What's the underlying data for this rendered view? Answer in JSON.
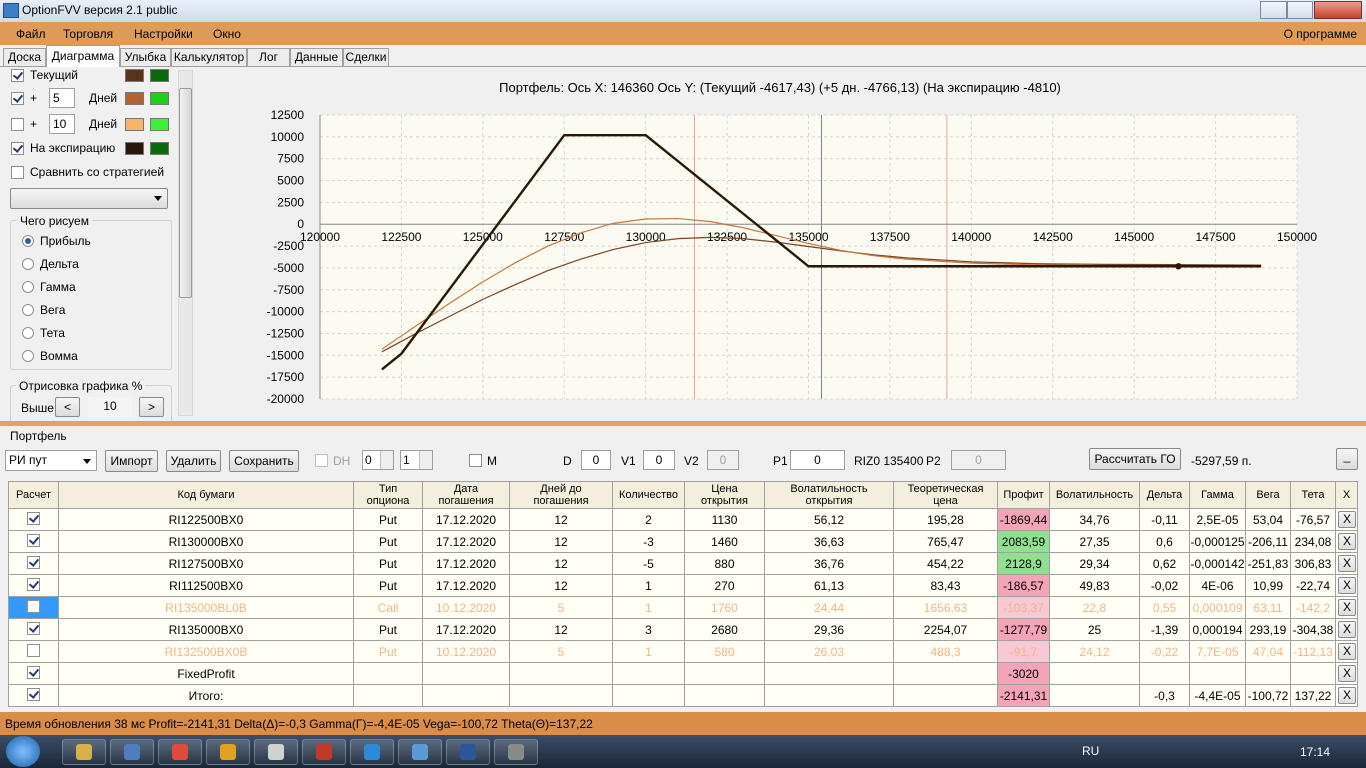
{
  "window": {
    "title": "OptionFVV версия 2.1 public"
  },
  "menu": {
    "items": [
      "Файл",
      "Торговля",
      "Настройки",
      "Окно"
    ],
    "about": "О программе"
  },
  "tabs": {
    "items": [
      "Доска",
      "Диаграмма",
      "Улыбка",
      "Калькулятор",
      "Лог",
      "Данные",
      "Сделки"
    ],
    "active": 1
  },
  "left_panel": {
    "curves": [
      {
        "label": "Текущий",
        "checked": true,
        "colors": [
          "#5c3317",
          "#0b6b0b"
        ]
      },
      {
        "prefix": "+",
        "days": "5",
        "label": "Дней",
        "checked": true,
        "colors": [
          "#b4632e",
          "#1ccf1c"
        ]
      },
      {
        "prefix": "+",
        "days": "10",
        "label": "Дней",
        "checked": false,
        "colors": [
          "#f8b26a",
          "#3af03a"
        ]
      },
      {
        "label": "На экспирацию",
        "checked": true,
        "colors": [
          "#2b1707",
          "#0b6b0b"
        ]
      }
    ],
    "compare": {
      "label": "Сравнить со стратегией",
      "checked": false
    },
    "draw_group": {
      "title": "Чего рисуем",
      "options": [
        "Прибыль",
        "Дельта",
        "Гамма",
        "Вега",
        "Тета",
        "Вомма"
      ],
      "selected": 0
    },
    "render_group": {
      "title": "Отрисовка графика %",
      "label": "Выше",
      "prev": "<",
      "value": "10",
      "next": ">"
    }
  },
  "chart_data": {
    "type": "line",
    "title": "Портфель: Ось X: 146360 Ось Y:  (Текущий -4617,43)  (+5 дн. -4766,13)  (На экспирацию -4810)",
    "xlim": [
      120000,
      150000
    ],
    "xticks": [
      120000,
      122500,
      125000,
      127500,
      130000,
      132500,
      135000,
      137500,
      140000,
      142500,
      145000,
      147500,
      150000
    ],
    "ylim": [
      -20000,
      12500
    ],
    "yticks": [
      12500,
      10000,
      7500,
      5000,
      2500,
      0,
      -2500,
      -5000,
      -7500,
      -10000,
      -12500,
      -15000,
      -17500,
      -20000
    ],
    "grid": true,
    "vlines": [
      {
        "value": 131500,
        "color": "#f0a0a0"
      },
      {
        "value": 135400,
        "color": "#7a8290"
      },
      {
        "value": 139250,
        "color": "#f0a0a0"
      }
    ],
    "series": [
      {
        "color": "#7a4520",
        "width": 1.2,
        "x": [
          121900,
          123000,
          124000,
          125000,
          126000,
          127000,
          128000,
          129000,
          130000,
          131000,
          132000,
          133000,
          134000,
          135000,
          136000,
          137000,
          138000,
          140000,
          142000,
          144000,
          146000,
          148900
        ],
        "values": [
          -14600,
          -12400,
          -10500,
          -8600,
          -6900,
          -5300,
          -4000,
          -2900,
          -2100,
          -1650,
          -1500,
          -1650,
          -2050,
          -2550,
          -3050,
          -3500,
          -3850,
          -4300,
          -4520,
          -4590,
          -4615,
          -4680
        ]
      },
      {
        "color": "#c8773a",
        "width": 1.2,
        "x": [
          121900,
          123000,
          124000,
          125000,
          126000,
          127000,
          128000,
          129000,
          130000,
          131000,
          132000,
          133000,
          134000,
          135000,
          136000,
          137000,
          138000,
          140000,
          142000,
          144000,
          146000,
          148900
        ],
        "values": [
          -14300,
          -11500,
          -9000,
          -6600,
          -4400,
          -2500,
          -1000,
          100,
          600,
          650,
          300,
          -400,
          -1300,
          -2200,
          -3000,
          -3600,
          -4000,
          -4450,
          -4650,
          -4730,
          -4760,
          -4800
        ]
      },
      {
        "color": "#2b1707",
        "width": 2.4,
        "x": [
          121900,
          122500,
          125000,
          127500,
          130000,
          135000,
          148900
        ],
        "values": [
          -16610,
          -14810,
          -2310,
          10190,
          10190,
          -4810,
          -4810
        ]
      }
    ],
    "cursor": {
      "x": 146360,
      "y": -4810,
      "color": "#2b1707"
    }
  },
  "portfolio": {
    "title": "Портфель",
    "toolbar": {
      "portfolio_select": "РИ пут",
      "buttons": [
        "Импорт",
        "Удалить",
        "Сохранить"
      ],
      "dh": {
        "label": "DH",
        "checked": false
      },
      "spins": [
        "0",
        "1"
      ],
      "m": {
        "label": "M",
        "checked": false
      },
      "fields": [
        {
          "label": "D",
          "value": "0"
        },
        {
          "label": "V1",
          "value": "0"
        },
        {
          "label": "V2",
          "value": "0"
        },
        {
          "label": "P1",
          "value": "0"
        }
      ],
      "underlying": "RIZ0 135400",
      "p2": {
        "label": "P2",
        "value": "0"
      },
      "go_button": "Рассчитать ГО",
      "go_value": "-5297,59 п.",
      "minimize": "_"
    },
    "table": {
      "header": [
        "Расчет",
        "Код бумаги",
        "Тип\nопциона",
        "Дата\nпогашения",
        "Дней до\nпогашения",
        "Количество",
        "Цена\nоткрытия",
        "Волатильность\nоткрытия",
        "Теоретическая\nцена",
        "Профит",
        "Волатильность",
        "Дельта",
        "Гамма",
        "Вега",
        "Тета",
        "X"
      ],
      "delete_label": "X",
      "rows": [
        {
          "checked": true,
          "active": true,
          "cells": [
            "RI122500BX0",
            "Put",
            "17.12.2020",
            "12",
            "2",
            "1130",
            "56,12",
            "195,28",
            "-1869,44",
            "34,76",
            "-0,11",
            "2,5E-05",
            "53,04",
            "-76,57"
          ]
        },
        {
          "checked": true,
          "active": true,
          "cells": [
            "RI130000BX0",
            "Put",
            "17.12.2020",
            "12",
            "-3",
            "1460",
            "36,63",
            "765,47",
            "2083,59",
            "27,35",
            "0,6",
            "-0,000125",
            "-206,11",
            "234,08"
          ]
        },
        {
          "checked": true,
          "active": true,
          "cells": [
            "RI127500BX0",
            "Put",
            "17.12.2020",
            "12",
            "-5",
            "880",
            "36,76",
            "454,22",
            "2128,9",
            "29,34",
            "0,62",
            "-0,000142",
            "-251,83",
            "306,83"
          ]
        },
        {
          "checked": true,
          "active": true,
          "cells": [
            "RI112500BX0",
            "Put",
            "17.12.2020",
            "12",
            "1",
            "270",
            "61,13",
            "83,43",
            "-186,57",
            "49,83",
            "-0,02",
            "4E-06",
            "10,99",
            "-22,74"
          ]
        },
        {
          "checked": false,
          "active": false,
          "selected": true,
          "cells": [
            "RI135000BL0B",
            "Call",
            "10.12.2020",
            "5",
            "1",
            "1760",
            "24,44",
            "1656,63",
            "-103,37",
            "22,8",
            "0,55",
            "0,000109",
            "63,11",
            "-142,2"
          ]
        },
        {
          "checked": true,
          "active": true,
          "cells": [
            "RI135000BX0",
            "Put",
            "17.12.2020",
            "12",
            "3",
            "2680",
            "29,36",
            "2254,07",
            "-1277,79",
            "25",
            "-1,39",
            "0,000194",
            "293,19",
            "-304,38"
          ]
        },
        {
          "checked": false,
          "active": false,
          "cells": [
            "RI132500BX0B",
            "Put",
            "10.12.2020",
            "5",
            "1",
            "580",
            "26,03",
            "488,3",
            "-91,7",
            "24,12",
            "-0,22",
            "7,7E-05",
            "47,04",
            "-112,13"
          ]
        },
        {
          "checked": true,
          "active": true,
          "cells": [
            "FixedProfit",
            null,
            null,
            null,
            null,
            null,
            null,
            null,
            "-3020",
            null,
            null,
            null,
            null,
            null
          ]
        },
        {
          "checked": true,
          "active": true,
          "cells": [
            "Итого:",
            null,
            null,
            null,
            null,
            null,
            null,
            null,
            "-2141,31",
            null,
            "-0,3",
            "-4,4E-05",
            "-100,72",
            "137,22"
          ]
        }
      ]
    }
  },
  "status": "Время обновления 38 мс  Profit=-2141,31 Delta(Δ)=-0,3 Gamma(Γ)=-4,4E-05 Vega=-100,72 Theta(Θ)=137,22",
  "taskbar": {
    "lang": "RU",
    "time": "17:14"
  }
}
